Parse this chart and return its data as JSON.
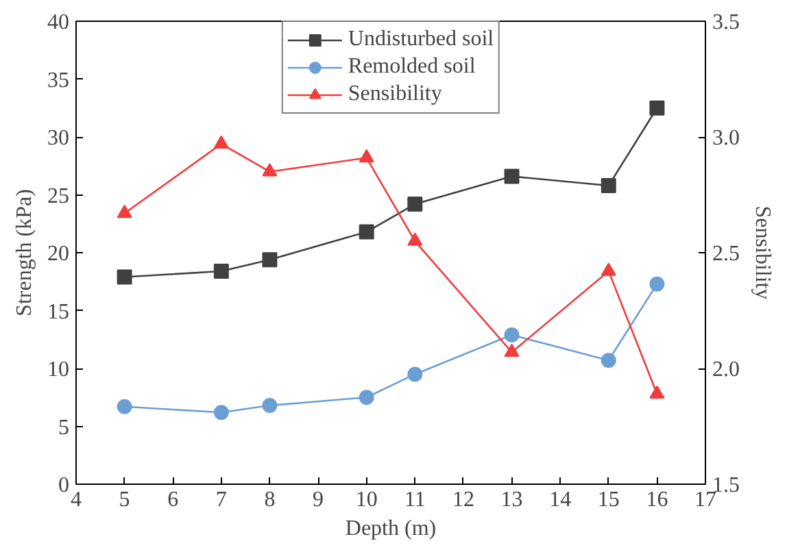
{
  "chart_data": {
    "type": "line",
    "xlabel": "Depth (m)",
    "ylabel": "Strength (kPa)",
    "y2label": "Sensibility",
    "x": [
      5,
      7,
      8,
      10,
      11,
      13,
      15,
      16
    ],
    "series": [
      {
        "name": "Undisturbed soil",
        "color": "#404040",
        "marker": "square",
        "values": [
          17.9,
          18.4,
          19.4,
          21.8,
          24.2,
          26.6,
          25.8,
          32.5
        ]
      },
      {
        "name": "Remolded soil",
        "color": "#6a9fd4",
        "marker": "circle",
        "values": [
          6.7,
          6.2,
          6.8,
          7.5,
          9.5,
          12.9,
          10.7,
          17.3
        ]
      },
      {
        "name": "Sensibility",
        "color": "#f03c3c",
        "marker": "triangle",
        "axis": "y2",
        "values": [
          2.67,
          2.97,
          2.85,
          2.91,
          2.55,
          2.07,
          2.42,
          1.89
        ]
      }
    ],
    "xlim": [
      4,
      17
    ],
    "xticks": [
      4,
      5,
      6,
      7,
      8,
      9,
      10,
      11,
      12,
      13,
      14,
      15,
      16,
      17
    ],
    "ylim": [
      0,
      40
    ],
    "yticks": [
      0,
      5,
      10,
      15,
      20,
      25,
      30,
      35,
      40
    ],
    "y2lim": [
      1.5,
      3.5
    ],
    "y2ticks": [
      {
        "value": 1.5,
        "label": "1.5"
      },
      {
        "value": 2.0,
        "label": "2.0"
      },
      {
        "value": 2.5,
        "label": "2.5"
      },
      {
        "value": 3.0,
        "label": "3.0"
      },
      {
        "value": 3.5,
        "label": "3.5"
      }
    ],
    "grid": false,
    "legend": "top"
  }
}
